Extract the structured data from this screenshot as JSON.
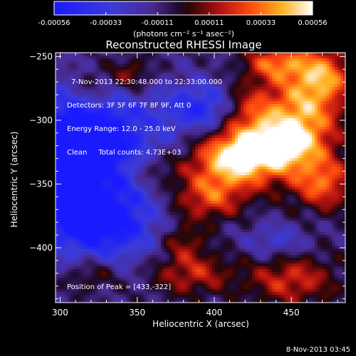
{
  "colorbar": {
    "ticks": [
      "-0.00056",
      "-0.00033",
      "-0.00011",
      "0.00011",
      "0.00033",
      "0.00056"
    ],
    "unit_label": "(photons cm⁻² s⁻¹ asec⁻²)"
  },
  "chart_data": {
    "type": "heatmap",
    "title": "Reconstructed RHESSI Image",
    "xlabel": "Heliocentric X (arcsec)",
    "ylabel": "Heliocentric Y (arcsec)",
    "xlim": [
      297,
      485
    ],
    "ylim": [
      -443,
      -247
    ],
    "x_ticks": [
      "300",
      "350",
      "400",
      "450"
    ],
    "y_ticks": [
      "-250",
      "-300",
      "-350",
      "-400"
    ],
    "colorscale_range": [
      -0.00056,
      0.00056
    ],
    "peak_position": [
      433,
      -322
    ],
    "annotations": [
      "7-Nov-2013 22:30:48.000 to 22:33:00.000",
      "Detectors: 3F 5F 6F 7F 8F 9F, Att 0",
      "Energy Range: 12.0 - 25.0 keV",
      "Clean     Total counts: 4.73E+03"
    ],
    "peak_label": "Position of Peak = [433,-322]",
    "grid": false
  },
  "footer": {
    "timestamp": "8-Nov-2013 03:45"
  }
}
